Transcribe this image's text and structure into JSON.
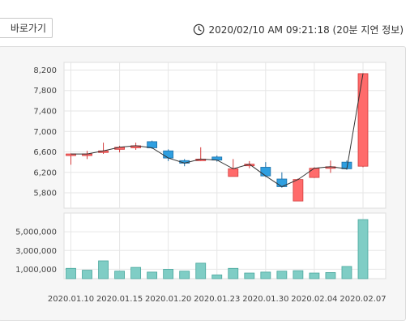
{
  "header": {
    "shortcut_label": "바로가기",
    "timestamp_text": "2020/02/10 AM 09:21:18 (20분 지연 정보)"
  },
  "colors": {
    "up": "#ff6b6b",
    "up_stroke": "#d33b3b",
    "down": "#2f9fe0",
    "down_stroke": "#1c6fa8",
    "volume": "#7fcdc5",
    "volume_stroke": "#4aa79d",
    "close_line": "#333333"
  },
  "chart_data": [
    {
      "type": "candlestick",
      "ylim": [
        5500,
        8350
      ],
      "yticks": [
        5800,
        6200,
        6600,
        7000,
        7400,
        7800,
        8200
      ],
      "ytick_labels": [
        "5,800",
        "6,200",
        "6,600",
        "7,000",
        "7,400",
        "7,800",
        "8,200"
      ],
      "grid": true,
      "candles": [
        {
          "open": 6530,
          "close": 6560,
          "high": 6570,
          "low": 6350
        },
        {
          "open": 6530,
          "close": 6560,
          "high": 6620,
          "low": 6460
        },
        {
          "open": 6590,
          "close": 6620,
          "high": 6780,
          "low": 6560
        },
        {
          "open": 6650,
          "close": 6690,
          "high": 6720,
          "low": 6590
        },
        {
          "open": 6680,
          "close": 6720,
          "high": 6780,
          "low": 6640
        },
        {
          "open": 6800,
          "close": 6680,
          "high": 6820,
          "low": 6660
        },
        {
          "open": 6620,
          "close": 6480,
          "high": 6650,
          "low": 6420
        },
        {
          "open": 6430,
          "close": 6380,
          "high": 6460,
          "low": 6320
        },
        {
          "open": 6430,
          "close": 6460,
          "high": 6690,
          "low": 6420
        },
        {
          "open": 6500,
          "close": 6440,
          "high": 6530,
          "low": 6410
        },
        {
          "open": 6120,
          "close": 6270,
          "high": 6460,
          "low": 6120
        },
        {
          "open": 6330,
          "close": 6360,
          "high": 6420,
          "low": 6280
        },
        {
          "open": 6300,
          "close": 6130,
          "high": 6400,
          "low": 6110
        },
        {
          "open": 6070,
          "close": 5920,
          "high": 6200,
          "low": 5900
        },
        {
          "open": 5640,
          "close": 6060,
          "high": 6080,
          "low": 5640
        },
        {
          "open": 6100,
          "close": 6280,
          "high": 6300,
          "low": 6090
        },
        {
          "open": 6290,
          "close": 6310,
          "high": 6430,
          "low": 6190
        },
        {
          "open": 6400,
          "close": 6270,
          "high": 6430,
          "low": 6250
        },
        {
          "open": 6320,
          "close": 8130,
          "high": 8140,
          "low": 6300
        }
      ]
    },
    {
      "type": "bar",
      "ylim": [
        0,
        7000000
      ],
      "yticks": [
        1000000,
        3000000,
        5000000
      ],
      "ytick_labels": [
        "1,000,000",
        "3,000,000",
        "5,000,000"
      ],
      "values": [
        1100000,
        900000,
        1900000,
        800000,
        1200000,
        700000,
        1000000,
        800000,
        1650000,
        400000,
        1100000,
        600000,
        700000,
        800000,
        850000,
        600000,
        650000,
        1300000,
        6300000
      ]
    }
  ],
  "x_axis": {
    "tick_labels": [
      "2020.01.10",
      "2020.01.15",
      "2020.01.20",
      "2020.01.23",
      "2020.01.30",
      "2020.02.04",
      "2020.02.07"
    ],
    "tick_index": [
      0,
      3,
      6,
      9,
      12,
      15,
      18
    ]
  }
}
